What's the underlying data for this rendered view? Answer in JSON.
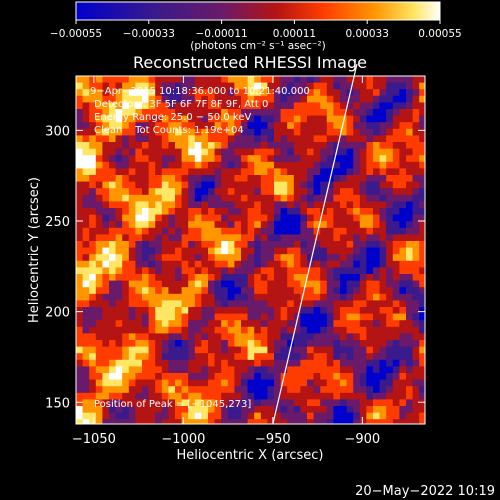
{
  "chart_data": {
    "type": "heatmap",
    "title": "Reconstructed RHESSI Image",
    "xlabel": "Heliocentric X (arcsec)",
    "ylabel": "Heliocentric Y (arcsec)",
    "xlim": [
      -1060,
      -865
    ],
    "ylim": [
      138,
      330
    ],
    "xticks": [
      -1050,
      -1000,
      -950,
      -900
    ],
    "yticks": [
      150,
      200,
      250,
      300
    ],
    "xtick_labels": [
      "−1050",
      "−1000",
      "−950",
      "−900"
    ],
    "ytick_labels": [
      "150",
      "200",
      "250",
      "300"
    ],
    "colorbar": {
      "range": [
        -0.00055,
        0.00055
      ],
      "tick_values": [
        -0.00055,
        -0.00033,
        -0.00011,
        0.00011,
        0.00033,
        0.00055
      ],
      "tick_labels": [
        "−0.00055",
        "−0.00033",
        "−0.00011",
        "0.00011",
        "0.00033",
        "0.00055"
      ],
      "units": "(photons cm⁻² s⁻¹ asec⁻²)"
    },
    "colormap": [
      "#0000cc",
      "#3a1a8c",
      "#6a1a6a",
      "#b41414",
      "#ff3c00",
      "#ff9600",
      "#ffe664",
      "#ffffff"
    ],
    "annotations": [
      "9−Apr−2015 10:18:36.000 to 10:21:40.000",
      "Detectors: 3F 5F 6F 7F 8F 9F, Att 0",
      "Energy Range: 25.0 − 50.0 keV",
      "Clean    Tot Counts: 1.19e+04"
    ],
    "peak_label": "Position of Peak = [−1045,273]",
    "limb_line": [
      [
        -950,
        138
      ],
      [
        -903,
        330
      ]
    ]
  },
  "footer": {
    "timestamp": "20−May−2022 10:19"
  }
}
